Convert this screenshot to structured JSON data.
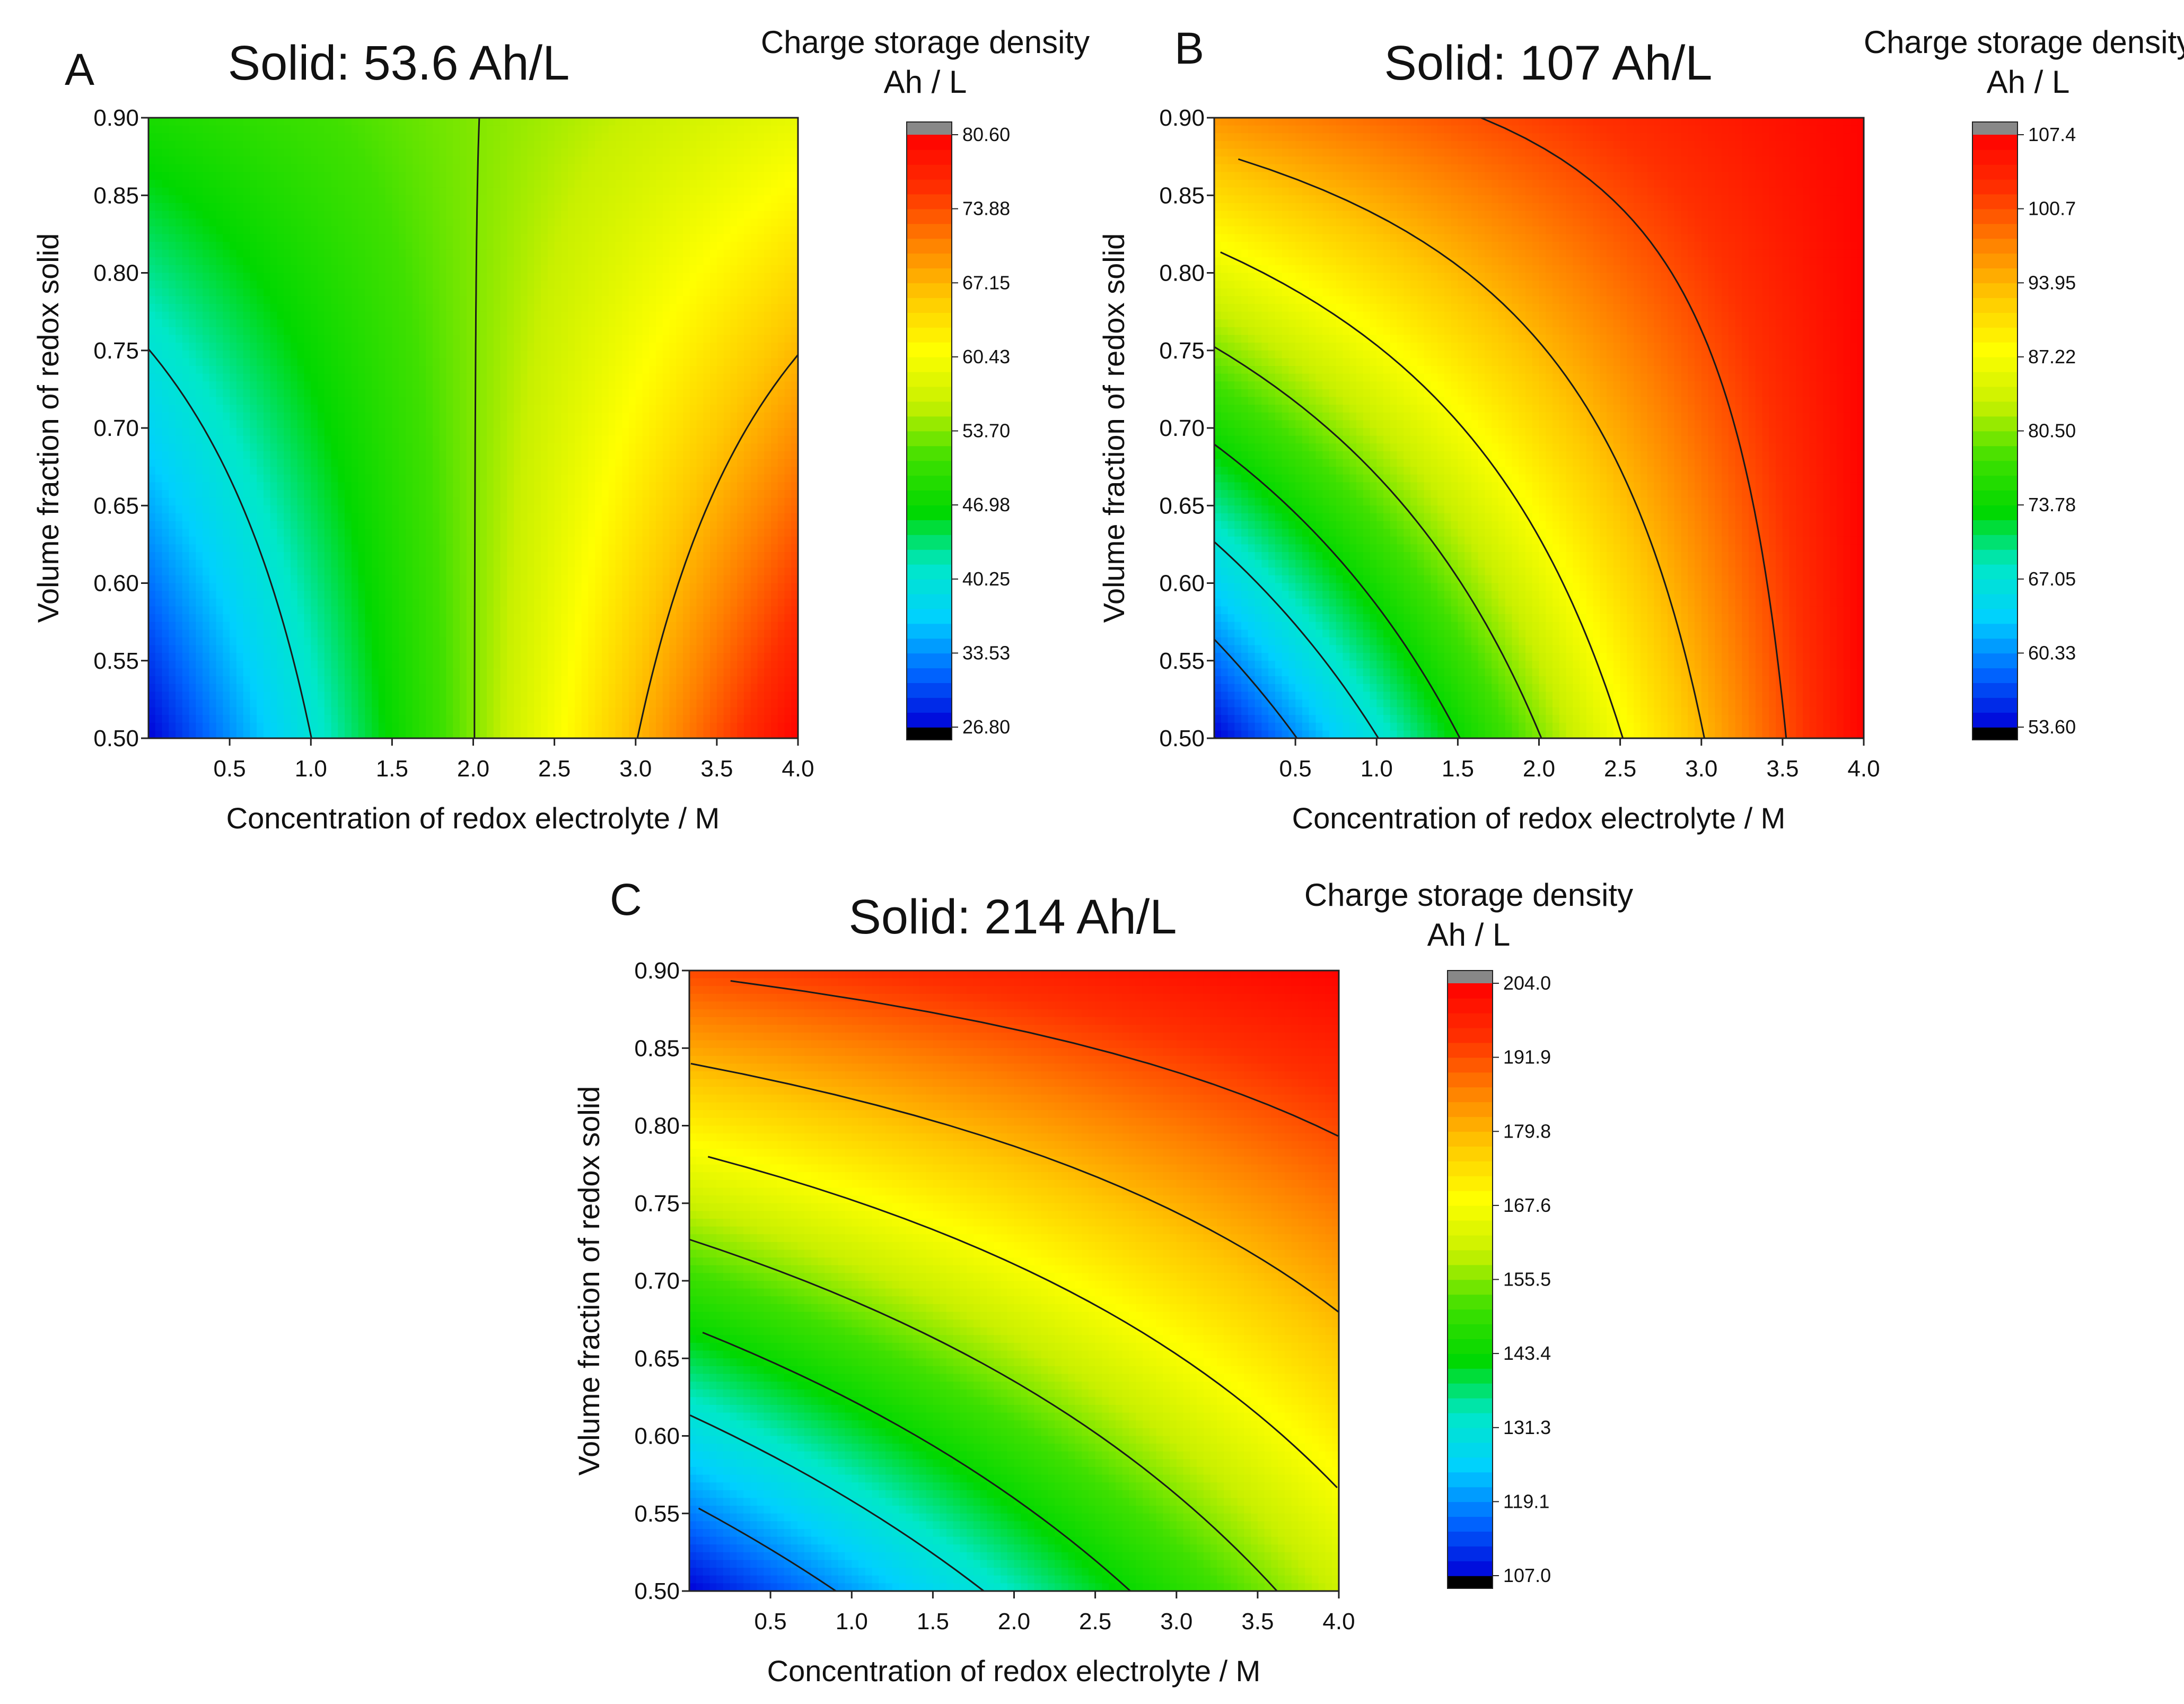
{
  "figure": {
    "colorscale": [
      "#0000d8",
      "#0066ff",
      "#00d0ff",
      "#00e8c8",
      "#00d800",
      "#40e000",
      "#c8f000",
      "#ffff00",
      "#ffc800",
      "#ff8000",
      "#ff3000",
      "#ff0000"
    ],
    "contour_line_color": "#1a1a1a",
    "over_color": "#888888",
    "under_color": "#000000"
  },
  "chart_data": [
    {
      "type": "contour",
      "panel": "A",
      "title": "Solid: 53.6 Ah/L",
      "solid_capacity": 53.6,
      "xlabel": "Concentration of redox electrolyte / M",
      "ylabel": "Volume fraction of redox solid",
      "xlim": [
        0,
        4.0
      ],
      "ylim": [
        0.5,
        0.9
      ],
      "x_ticks": [
        "0.5",
        "1.0",
        "1.5",
        "2.0",
        "2.5",
        "3.0",
        "3.5",
        "4.0"
      ],
      "y_ticks": [
        "0.50",
        "0.55",
        "0.60",
        "0.65",
        "0.70",
        "0.75",
        "0.80",
        "0.85",
        "0.90"
      ],
      "colorbar": {
        "title_line1": "Charge storage density",
        "title_line2": "Ah / L",
        "min": 26.8,
        "max": 80.6,
        "tick_labels": [
          "26.80",
          "33.53",
          "40.25",
          "46.98",
          "53.70",
          "60.43",
          "67.15",
          "73.88",
          "80.60"
        ]
      },
      "contour_levels": [
        26.8,
        40.25,
        53.7,
        67.15,
        80.6
      ]
    },
    {
      "type": "contour",
      "panel": "B",
      "title": "Solid: 107 Ah/L",
      "solid_capacity": 107,
      "xlabel": "Concentration of redox electrolyte / M",
      "ylabel": "Volume fraction of redox solid",
      "xlim": [
        0,
        4.0
      ],
      "ylim": [
        0.5,
        0.9
      ],
      "x_ticks": [
        "0.5",
        "1.0",
        "1.5",
        "2.0",
        "2.5",
        "3.0",
        "3.5",
        "4.0"
      ],
      "y_ticks": [
        "0.50",
        "0.55",
        "0.60",
        "0.65",
        "0.70",
        "0.75",
        "0.80",
        "0.85",
        "0.90"
      ],
      "colorbar": {
        "title_line1": "Charge storage density",
        "title_line2": "Ah / L",
        "min": 53.6,
        "max": 107.4,
        "tick_labels": [
          "53.60",
          "60.33",
          "67.05",
          "73.78",
          "80.50",
          "87.22",
          "93.95",
          "100.7",
          "107.4"
        ]
      },
      "contour_levels": [
        53.6,
        60.33,
        67.05,
        73.78,
        80.5,
        87.22,
        93.95,
        100.7
      ]
    },
    {
      "type": "contour",
      "panel": "C",
      "title": "Solid: 214 Ah/L",
      "solid_capacity": 214,
      "xlabel": "Concentration of redox electrolyte / M",
      "ylabel": "Volume fraction of redox solid",
      "xlim": [
        0,
        4.0
      ],
      "ylim": [
        0.5,
        0.9
      ],
      "x_ticks": [
        "0.5",
        "1.0",
        "1.5",
        "2.0",
        "2.5",
        "3.0",
        "3.5",
        "4.0"
      ],
      "y_ticks": [
        "0.50",
        "0.55",
        "0.60",
        "0.65",
        "0.70",
        "0.75",
        "0.80",
        "0.85",
        "0.90"
      ],
      "colorbar": {
        "title_line1": "Charge storage density",
        "title_line2": "Ah / L",
        "min": 107.0,
        "max": 204.0,
        "tick_labels": [
          "107.0",
          "119.1",
          "131.3",
          "143.4",
          "155.5",
          "167.6",
          "179.8",
          "191.9",
          "204.0"
        ]
      },
      "contour_levels": [
        107.0,
        119.1,
        131.3,
        143.4,
        155.5,
        167.6,
        179.8,
        191.9
      ]
    }
  ]
}
